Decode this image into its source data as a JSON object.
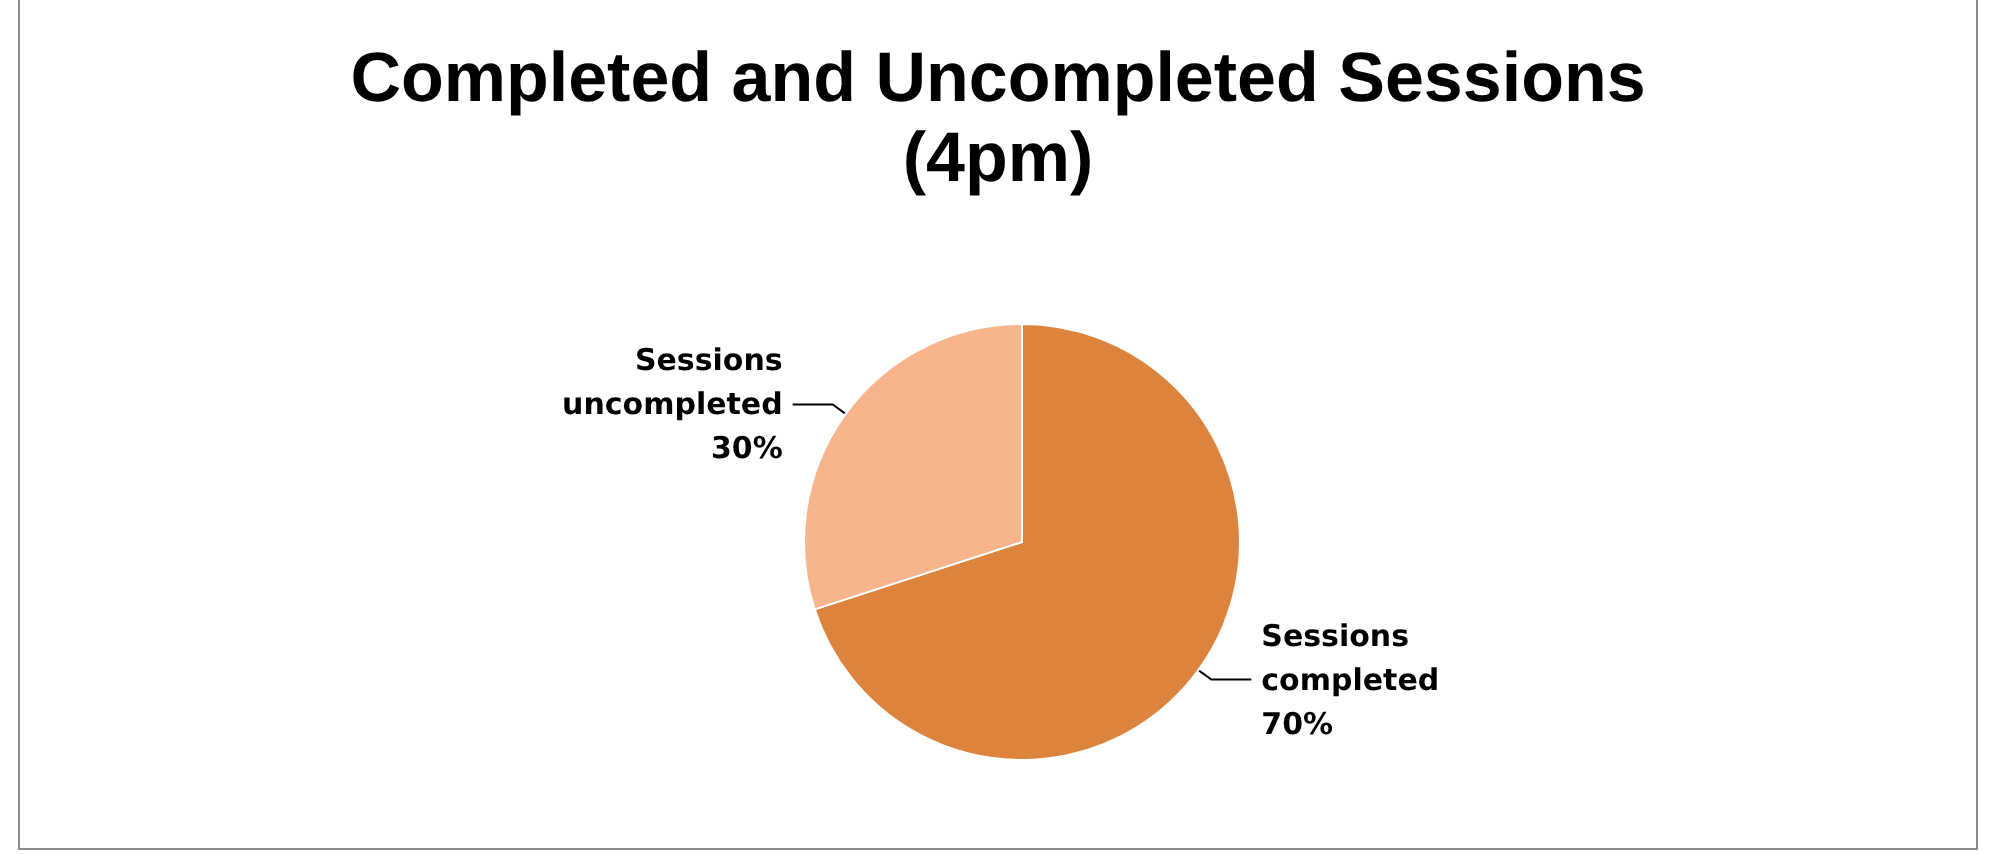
{
  "chart_data": {
    "type": "pie",
    "title": "Completed and Uncompleted Sessions (4pm)",
    "categories": [
      "Sessions completed",
      "Sessions uncompleted"
    ],
    "values": [
      70,
      30
    ],
    "colors": [
      "#dc843e",
      "#f8b48c"
    ],
    "value_labels": [
      "70%",
      "30%"
    ],
    "legend": false
  }
}
